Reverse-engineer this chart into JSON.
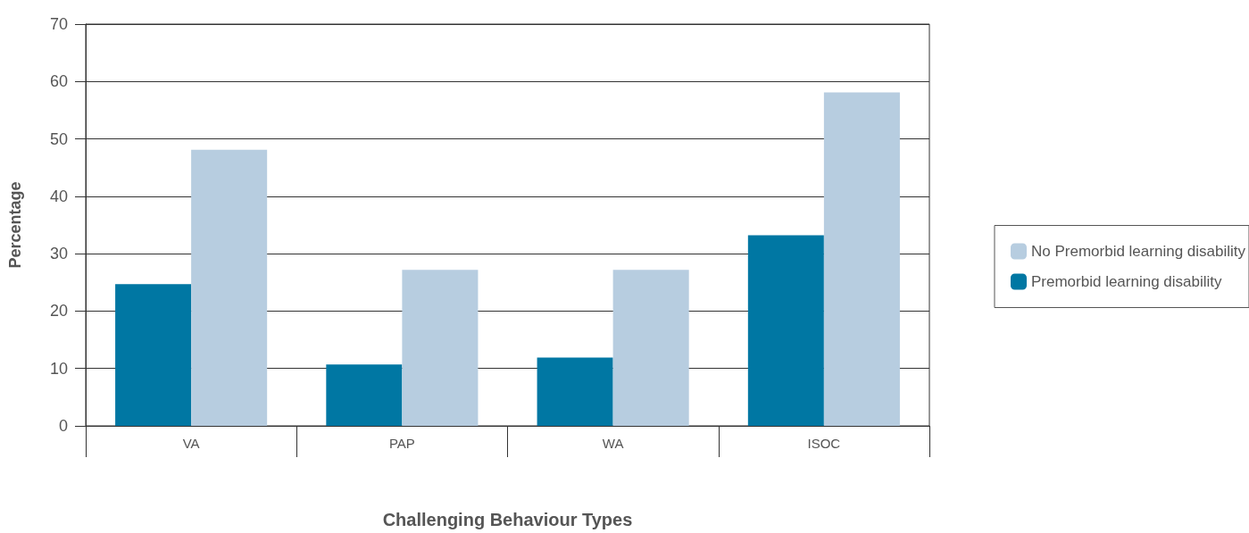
{
  "chart_data": {
    "type": "bar",
    "xlabel": "Challenging Behaviour Types",
    "ylabel": "Percentage",
    "categories": [
      "VA",
      "PAP",
      "WA",
      "ISOC"
    ],
    "series": [
      {
        "name": "Premorbid learning disability",
        "color": "#0077a3",
        "values": [
          24.7,
          10.7,
          11.9,
          33.2
        ]
      },
      {
        "name": "No Premorbid learning disability",
        "color": "#b7cde0",
        "values": [
          48.1,
          27.2,
          27.2,
          58.1
        ]
      }
    ],
    "ylim": [
      0,
      70
    ],
    "yticks": [
      0,
      10,
      20,
      30,
      40,
      50,
      60,
      70
    ],
    "grid": "y",
    "legend": "right"
  }
}
